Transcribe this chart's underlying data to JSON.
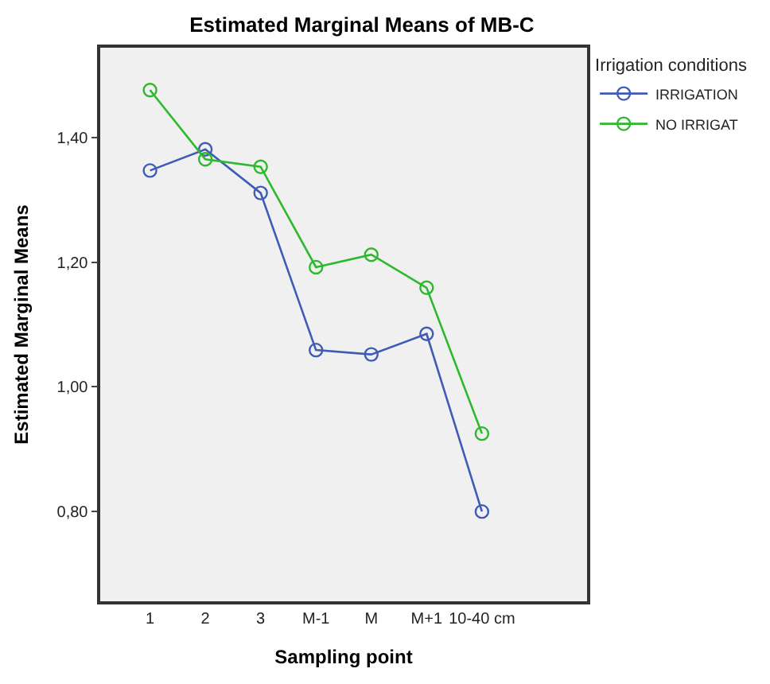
{
  "chart_data": {
    "type": "line",
    "title": "Estimated Marginal Means of MB-C",
    "xlabel": "Sampling point",
    "ylabel": "Estimated Marginal Means",
    "legend_title": "Irrigation conditions",
    "categories": [
      "1",
      "2",
      "3",
      "M-1",
      "M",
      "M+1",
      "10-40 cm"
    ],
    "series": [
      {
        "name": "IRRIGATION",
        "color": "#3f5bb5",
        "values": [
          1.347,
          1.381,
          1.311,
          1.059,
          1.052,
          1.085,
          0.8
        ]
      },
      {
        "name": "NO IRRIGAT",
        "color": "#2eb82e",
        "values": [
          1.476,
          1.365,
          1.353,
          1.192,
          1.212,
          1.159,
          0.925
        ]
      }
    ],
    "ylim": [
      0.656,
      1.544
    ],
    "yticks": [
      {
        "value": 0.8,
        "label": "0,80"
      },
      {
        "value": 1.0,
        "label": "1,00"
      },
      {
        "value": 1.2,
        "label": "1,20"
      },
      {
        "value": 1.4,
        "label": "1,40"
      }
    ],
    "marker": "circle",
    "line_style": "solid",
    "grid": false,
    "legend": "top right"
  }
}
